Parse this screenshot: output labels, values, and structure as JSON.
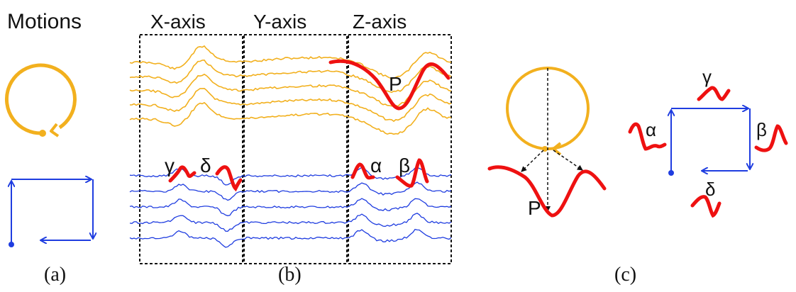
{
  "header": {
    "motions": "Motions",
    "x_axis": "X-axis",
    "y_axis": "Y-axis",
    "z_axis": "Z-axis"
  },
  "panel_a": {
    "caption": "(a)"
  },
  "panel_b": {
    "caption": "(b)",
    "labels": {
      "gamma": "γ",
      "delta": "δ",
      "alpha": "α",
      "beta": "β",
      "p": "P"
    }
  },
  "panel_c": {
    "caption": "(c)",
    "labels": {
      "p": "P",
      "gamma": "γ",
      "alpha": "α",
      "beta": "β",
      "delta": "δ"
    }
  },
  "colors": {
    "circle_motion": "#f2b01e",
    "square_motion": "#1f3de0",
    "segment": "#ee1111",
    "frame": "#111111"
  }
}
